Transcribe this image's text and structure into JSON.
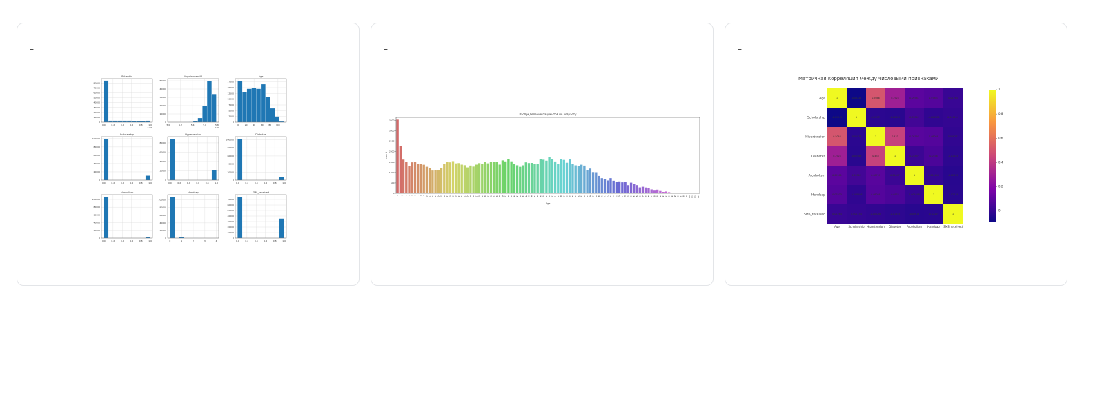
{
  "cards": [
    {
      "label": "–"
    },
    {
      "label": "–"
    },
    {
      "label": "–"
    }
  ],
  "chart_data": [
    {
      "type": "histogram",
      "title": "PatientId",
      "bins": [
        0,
        0.1,
        0.2,
        0.3,
        0.4,
        0.5,
        0.6,
        0.7,
        0.8,
        0.9,
        1.0
      ],
      "values": [
        85000,
        3000,
        3000,
        3000,
        3000,
        3000,
        2500,
        2500,
        2500,
        3000
      ],
      "color": "#1f77b4",
      "xlim": [
        -0.05,
        1.05
      ],
      "ylim": [
        0,
        89000
      ],
      "xticks": [
        {
          "value": 0,
          "label": "0.0"
        },
        0.2,
        0.4,
        0.6,
        0.8,
        {
          "value": 1,
          "label": "1.0"
        }
      ],
      "yticks": [
        0,
        10000,
        20000,
        30000,
        40000,
        50000,
        60000,
        70000,
        80000
      ],
      "grid": true,
      "annotation": "1e15"
    },
    {
      "type": "histogram",
      "title": "AppointmentID",
      "bins": [
        5.03,
        5.106,
        5.182,
        5.258,
        5.334,
        5.41,
        5.486,
        5.562,
        5.638,
        5.714,
        5.79
      ],
      "values": [
        1,
        1,
        3,
        30,
        200,
        1500,
        5000,
        20000,
        50000,
        34000
      ],
      "color": "#1f77b4",
      "xlim": [
        4.99,
        5.83
      ],
      "ylim": [
        0,
        52500
      ],
      "xticks": [
        {
          "value": 5,
          "label": "5.0"
        },
        5.2,
        5.4,
        5.6,
        5.8
      ],
      "yticks": [
        0,
        10000,
        20000,
        30000,
        40000,
        50000
      ],
      "grid": true,
      "annotation": "1e6"
    },
    {
      "type": "histogram",
      "title": "Age",
      "bins": [
        -1,
        10.6,
        22.2,
        33.8,
        45.4,
        57,
        68.6,
        80.2,
        91.8,
        103.4,
        115
      ],
      "values": [
        18000,
        13000,
        14500,
        15000,
        14500,
        16500,
        11000,
        6000,
        2500,
        300
      ],
      "color": "#1f77b4",
      "xlim": [
        -7,
        121
      ],
      "ylim": [
        0,
        18900
      ],
      "xticks": [
        0,
        20,
        40,
        60,
        80,
        100
      ],
      "yticks": [
        0,
        2500,
        5000,
        7500,
        10000,
        12500,
        15000,
        17500
      ],
      "grid": true
    },
    {
      "type": "histogram",
      "title": "Scholarship",
      "bins": [
        0,
        0.1,
        0.2,
        0.3,
        0.4,
        0.5,
        0.6,
        0.7,
        0.8,
        0.9,
        1.0
      ],
      "values": [
        99666,
        0,
        0,
        0,
        0,
        0,
        0,
        0,
        0,
        10861
      ],
      "color": "#1f77b4",
      "xlim": [
        -0.05,
        1.05
      ],
      "ylim": [
        0,
        104700
      ],
      "xticks": [
        {
          "value": 0,
          "label": "0.0"
        },
        0.2,
        0.4,
        0.6,
        0.8,
        {
          "value": 1,
          "label": "1.0"
        }
      ],
      "yticks": [
        0,
        20000,
        40000,
        60000,
        80000,
        100000
      ],
      "grid": true
    },
    {
      "type": "histogram",
      "title": "Hypertension",
      "bins": [
        0,
        0.1,
        0.2,
        0.3,
        0.4,
        0.5,
        0.6,
        0.7,
        0.8,
        0.9,
        1.0
      ],
      "values": [
        88726,
        0,
        0,
        0,
        0,
        0,
        0,
        0,
        0,
        21801
      ],
      "color": "#1f77b4",
      "xlim": [
        -0.05,
        1.05
      ],
      "ylim": [
        0,
        93200
      ],
      "xticks": [
        {
          "value": 0,
          "label": "0.0"
        },
        0.2,
        0.4,
        0.6,
        0.8,
        {
          "value": 1,
          "label": "1.0"
        }
      ],
      "yticks": [
        0,
        20000,
        40000,
        60000,
        80000
      ],
      "grid": true
    },
    {
      "type": "histogram",
      "title": "Diabetes",
      "bins": [
        0,
        0.1,
        0.2,
        0.3,
        0.4,
        0.5,
        0.6,
        0.7,
        0.8,
        0.9,
        1.0
      ],
      "values": [
        102584,
        0,
        0,
        0,
        0,
        0,
        0,
        0,
        0,
        7943
      ],
      "color": "#1f77b4",
      "xlim": [
        -0.05,
        1.05
      ],
      "ylim": [
        0,
        107700
      ],
      "xticks": [
        {
          "value": 0,
          "label": "0.0"
        },
        0.2,
        0.4,
        0.6,
        0.8,
        {
          "value": 1,
          "label": "1.0"
        }
      ],
      "yticks": [
        0,
        20000,
        40000,
        60000,
        80000,
        100000
      ],
      "grid": true
    },
    {
      "type": "histogram",
      "title": "Alcoholism",
      "bins": [
        0,
        0.1,
        0.2,
        0.3,
        0.4,
        0.5,
        0.6,
        0.7,
        0.8,
        0.9,
        1.0
      ],
      "values": [
        107167,
        0,
        0,
        0,
        0,
        0,
        0,
        0,
        0,
        3360
      ],
      "color": "#1f77b4",
      "xlim": [
        -0.05,
        1.05
      ],
      "ylim": [
        0,
        112500
      ],
      "xticks": [
        {
          "value": 0,
          "label": "0.0"
        },
        0.2,
        0.4,
        0.6,
        0.8,
        {
          "value": 1,
          "label": "1.0"
        }
      ],
      "yticks": [
        0,
        20000,
        40000,
        60000,
        80000,
        100000
      ],
      "grid": true
    },
    {
      "type": "histogram",
      "title": "Handcap",
      "bins": [
        0,
        0.4,
        0.8,
        1.2,
        1.6,
        2.0,
        2.4,
        2.8,
        3.2,
        3.6,
        4.0
      ],
      "values": [
        108286,
        0,
        2042,
        0,
        0,
        183,
        0,
        13,
        0,
        3
      ],
      "color": "#1f77b4",
      "xlim": [
        -0.2,
        4.2
      ],
      "ylim": [
        0,
        113700
      ],
      "xticks": [
        0,
        1,
        2,
        3,
        4
      ],
      "yticks": [
        0,
        20000,
        40000,
        60000,
        80000,
        100000
      ],
      "grid": true
    },
    {
      "type": "histogram",
      "title": "SMS_received",
      "bins": [
        0,
        0.1,
        0.2,
        0.3,
        0.4,
        0.5,
        0.6,
        0.7,
        0.8,
        0.9,
        1.0
      ],
      "values": [
        75045,
        0,
        0,
        0,
        0,
        0,
        0,
        0,
        0,
        35482
      ],
      "color": "#1f77b4",
      "xlim": [
        -0.05,
        1.05
      ],
      "ylim": [
        0,
        78800
      ],
      "xticks": [
        {
          "value": 0,
          "label": "0.0"
        },
        0.2,
        0.4,
        0.6,
        0.8,
        {
          "value": 1,
          "label": "1.0"
        }
      ],
      "yticks": [
        0,
        10000,
        20000,
        30000,
        40000,
        50000,
        60000,
        70000
      ],
      "grid": true
    },
    {
      "type": "bar",
      "title": "Распределение пациентов по возрасту",
      "x_label": "Age",
      "y_label": "count",
      "palette": "husl",
      "categories": [
        "0",
        "1",
        "2",
        "3",
        "4",
        "5",
        "6",
        "7",
        "8",
        "9",
        "10",
        "11",
        "12",
        "13",
        "14",
        "15",
        "16",
        "17",
        "18",
        "19",
        "20",
        "21",
        "22",
        "23",
        "24",
        "25",
        "26",
        "27",
        "28",
        "29",
        "30",
        "31",
        "32",
        "33",
        "34",
        "35",
        "36",
        "37",
        "38",
        "39",
        "40",
        "41",
        "42",
        "43",
        "44",
        "45",
        "46",
        "47",
        "48",
        "49",
        "50",
        "51",
        "52",
        "53",
        "54",
        "55",
        "56",
        "57",
        "58",
        "59",
        "60",
        "61",
        "62",
        "63",
        "64",
        "65",
        "66",
        "67",
        "68",
        "69",
        "70",
        "71",
        "72",
        "73",
        "74",
        "75",
        "76",
        "77",
        "78",
        "79",
        "80",
        "81",
        "82",
        "83",
        "84",
        "85",
        "86",
        "87",
        "88",
        "89",
        "90",
        "91",
        "92",
        "93",
        "94",
        "95",
        "96",
        "97",
        "98",
        "99",
        "100",
        "101",
        "102",
        "115"
      ],
      "values": [
        3539,
        2273,
        1618,
        1513,
        1299,
        1489,
        1521,
        1427,
        1424,
        1372,
        1274,
        1195,
        1092,
        1103,
        1118,
        1211,
        1402,
        1509,
        1487,
        1545,
        1437,
        1451,
        1376,
        1349,
        1242,
        1332,
        1283,
        1377,
        1448,
        1403,
        1521,
        1439,
        1505,
        1524,
        1526,
        1378,
        1580,
        1533,
        1629,
        1536,
        1402,
        1346,
        1272,
        1344,
        1487,
        1453,
        1460,
        1394,
        1399,
        1652,
        1613,
        1567,
        1746,
        1651,
        1530,
        1425,
        1635,
        1603,
        1469,
        1624,
        1411,
        1343,
        1312,
        1374,
        1331,
        1101,
        1187,
        1019,
        1012,
        832,
        724,
        695,
        615,
        725,
        602,
        544,
        571,
        527,
        541,
        390,
        511,
        434,
        392,
        280,
        311,
        275,
        260,
        184,
        126,
        173,
        109,
        66,
        86,
        53,
        33,
        24,
        17,
        11,
        6,
        1,
        4,
        1,
        2,
        5
      ],
      "ylim": [
        0,
        3650
      ],
      "yticks": [
        0,
        500,
        1000,
        1500,
        2000,
        2500,
        3000,
        3500
      ]
    },
    {
      "type": "heatmap",
      "title": "Матричная корреляция между числовыми признаками",
      "colormap": "plasma",
      "labels": [
        "Age",
        "Scholarship",
        "Hipertension",
        "Diabetes",
        "Alcoholism",
        "Handcap",
        "SMS_received"
      ],
      "values": [
        [
          1,
          -0.09245,
          0.5046,
          0.2924,
          0.09581,
          0.07803,
          0.01264
        ],
        [
          -0.09245,
          1,
          -0.01973,
          -0.02489,
          0.03502,
          -0.008586,
          0.001194
        ],
        [
          0.5046,
          -0.01973,
          1,
          0.433,
          0.08797,
          0.08008,
          -0.006267
        ],
        [
          0.2924,
          -0.02489,
          0.433,
          1,
          0.01847,
          0.0576,
          -0.01455
        ],
        [
          0.09581,
          0.03502,
          0.08797,
          0.01847,
          1,
          0.004648,
          -0.02615
        ],
        [
          0.07803,
          -0.008586,
          0.08008,
          0.0576,
          0.004648,
          1,
          -0.02419
        ],
        [
          0.01264,
          0.001194,
          -0.006267,
          -0.01455,
          -0.02615,
          -0.02419,
          1
        ]
      ],
      "zlim": [
        -0.0925,
        1
      ],
      "zticks": [
        0,
        0.2,
        0.4,
        0.6,
        0.8,
        1
      ]
    }
  ]
}
